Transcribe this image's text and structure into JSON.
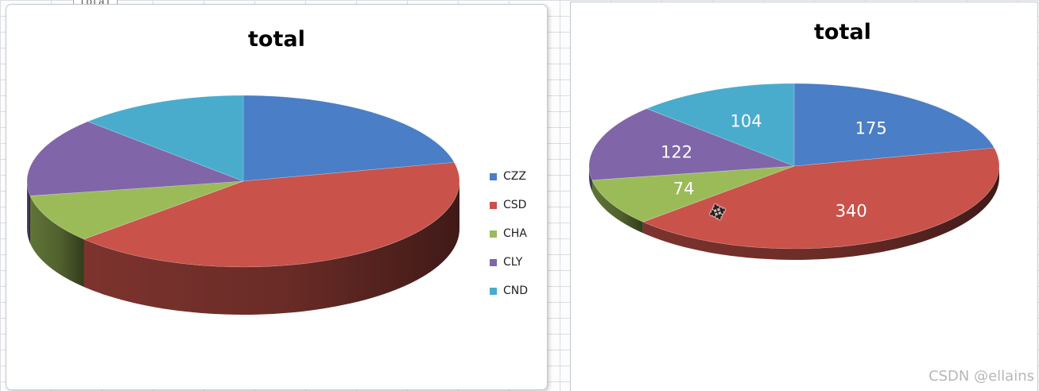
{
  "sheet": {
    "fragment_text": "total"
  },
  "watermark": "CSDN @ellains",
  "cursor": "move-cursor-icon",
  "chart_data": [
    {
      "type": "pie",
      "title": "total",
      "categories": [
        "CZZ",
        "CSD",
        "CHA",
        "CLY",
        "CND"
      ],
      "values": [
        175,
        340,
        74,
        122,
        104
      ],
      "colors": [
        "#4a7ec6",
        "#c9524a",
        "#9bbb59",
        "#8065a8",
        "#4aaccc"
      ],
      "legend": "right",
      "data_labels": false,
      "style": "3d"
    },
    {
      "type": "pie",
      "title": "total",
      "categories": [
        "CZZ",
        "CSD",
        "CHA",
        "CLY",
        "CND"
      ],
      "values": [
        175,
        340,
        74,
        122,
        104
      ],
      "colors": [
        "#4a7ec6",
        "#c9524a",
        "#9bbb59",
        "#8065a8",
        "#4aaccc"
      ],
      "legend": "none",
      "data_labels": true,
      "style": "3d"
    }
  ]
}
